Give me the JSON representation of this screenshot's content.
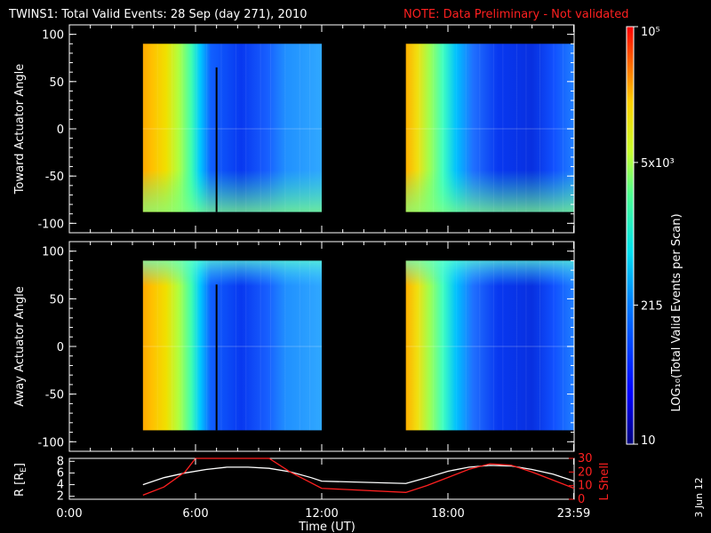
{
  "header": {
    "title": "TWINS1: Total Valid Events: 28 Sep (day 271), 2010",
    "note": "NOTE: Data Preliminary - Not validated"
  },
  "stamp": "3 Jun 12",
  "colors": {
    "note": "#ff2020",
    "axis": "#ffffff",
    "r_line": "#ffffff",
    "lshell_line": "#ff2020"
  },
  "chart_data": [
    {
      "type": "heatmap",
      "title": "",
      "ylabel": "Toward Actuator Angle",
      "xlabel": "",
      "xlim": [
        0,
        24
      ],
      "ylim": [
        -110,
        110
      ],
      "y_ticks": [
        "100",
        "50",
        "0",
        "-50",
        "-100"
      ],
      "data_blocks_ut": [
        [
          3.5,
          12.0
        ],
        [
          16.0,
          24.0
        ]
      ],
      "angle_range": [
        -88,
        90
      ],
      "colorscale": "jet (LOG10 counts)"
    },
    {
      "type": "heatmap",
      "title": "",
      "ylabel": "Away Actuator Angle",
      "xlabel": "",
      "xlim": [
        0,
        24
      ],
      "ylim": [
        -110,
        110
      ],
      "y_ticks": [
        "100",
        "50",
        "0",
        "-50",
        "-100"
      ],
      "data_blocks_ut": [
        [
          3.5,
          12.0
        ],
        [
          16.0,
          24.0
        ]
      ],
      "angle_range": [
        -88,
        90
      ],
      "colorscale": "jet (LOG10 counts)"
    },
    {
      "type": "line",
      "title": "",
      "xlabel": "Time (UT)",
      "ylabel_left": "R [R",
      "ylabel_left_sub": "E",
      "ylabel_left_end": "]",
      "ylabel_right": "L Shell",
      "x_tick_labels": [
        "0:00",
        "6:00",
        "12:00",
        "18:00",
        "23:59"
      ],
      "x_tick_values": [
        0,
        6,
        12,
        18,
        23.98
      ],
      "left_ylim": [
        1.5,
        8.5
      ],
      "left_ticks": [
        "8",
        "6",
        "4",
        "2"
      ],
      "right_ylim": [
        0,
        30
      ],
      "right_ticks": [
        "30",
        "20",
        "10",
        "0"
      ],
      "series": [
        {
          "x": [
            3.5,
            4.5,
            5.5,
            6.5,
            7.5,
            8.5,
            9.5,
            10.5,
            11.5,
            12.0,
            16.0,
            17.0,
            18.0,
            19.0,
            20.0,
            21.0,
            22.0,
            23.0,
            24.0
          ],
          "values": [
            4.0,
            5.2,
            6.0,
            6.6,
            7.0,
            7.0,
            6.8,
            6.2,
            5.2,
            4.6,
            4.2,
            5.2,
            6.3,
            7.0,
            7.3,
            7.2,
            6.6,
            5.8,
            4.6
          ]
        },
        {
          "x": [
            3.5,
            4.5,
            5.5,
            6.0,
            9.5,
            10.5,
            11.5,
            12.0,
            16.0,
            17.0,
            18.0,
            19.0,
            20.0,
            21.0,
            22.0,
            23.0,
            24.0
          ],
          "values": [
            3,
            9,
            20,
            30,
            30,
            20,
            12,
            8,
            5,
            10,
            16,
            22,
            26,
            25,
            20,
            14,
            8
          ]
        }
      ]
    },
    {
      "type": "colorbar",
      "label": "LOG₁₀(Total Valid Events per Scan)",
      "ticks": [
        {
          "label": "10⁵",
          "value": 100000
        },
        {
          "label": "5x10³",
          "value": 5000
        },
        {
          "label": "215",
          "value": 215
        },
        {
          "label": "10",
          "value": 10
        }
      ],
      "range": [
        10,
        100000
      ]
    }
  ]
}
